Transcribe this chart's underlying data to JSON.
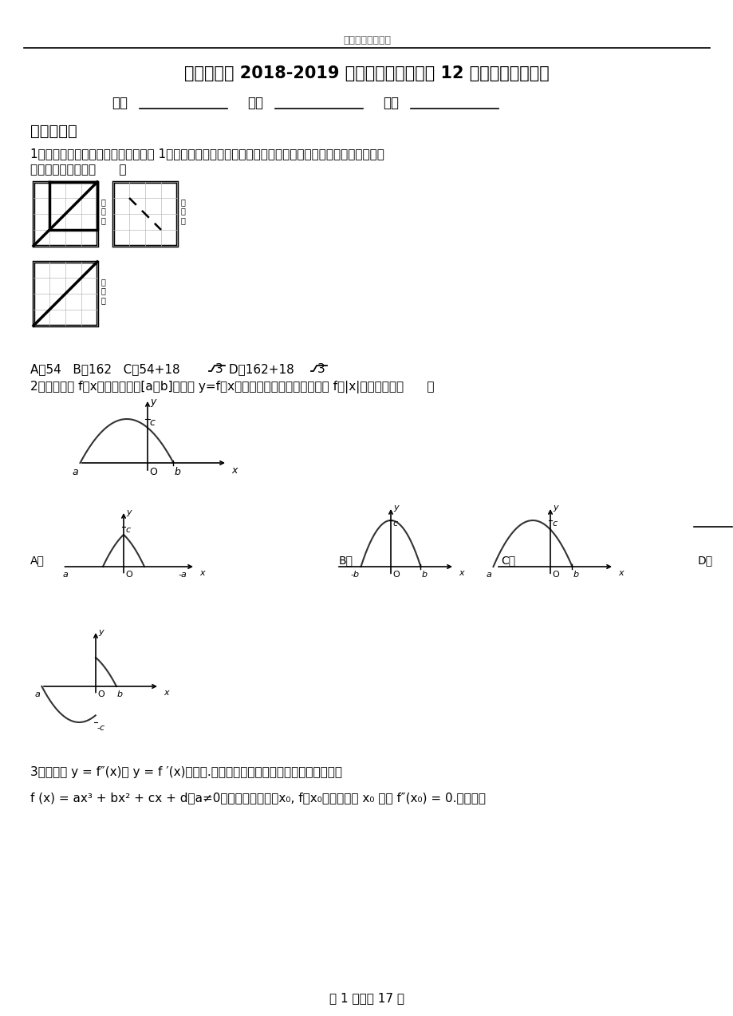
{
  "title_header": "精选高中模拟试卷",
  "title_main_part1": "灌云县二中",
  "title_main_part2": " 2018-2019 ",
  "title_main_part3": "学年上学期高二数学",
  "title_main_part4": " 12 ",
  "title_main_part5": "月月考试题含解析",
  "subtitle_1": "班级",
  "subtitle_2": "          ",
  "subtitle_3": "姓名",
  "subtitle_4": "          ",
  "subtitle_5": "分数",
  "subtitle_6": "          ",
  "section1": "一、选择题",
  "q1_line1": "1．如图，网格纸上小正方形的边长为 1，粗线画出的是一正方体被截去一部分后所得几何体的三视图，则该",
  "q1_line2": "几何体的表面积为（      ）",
  "q1_opt_prefix": "A．54   B．162   C．54+18",
  "q1_opt_mid": "3 D．162+18",
  "q1_opt_end": "3",
  "q2_line1": "2．已知函数 f（x）的定义域为[a，b]，函数 y=f（x）的图象如下图所示，则函数 f（|x|）的图象是（      ）",
  "q3_line1": "3．设函数 y = f″(x)是 y = f ′(x)的导数.某同学经过探究发现，任意一个三次函数",
  "q3_line2": "f (x) = ax³ + bx² + cx + d（a≠0）都有对称中心（x₀, f（x₀）），其中 x₀ 满足 f″(x₀) = 0.已知函数",
  "page_footer": "第 1 页，共 17 页",
  "label_zheng": "正\n视\n图",
  "label_ce": "侧\n视\n图",
  "label_fu": "俯\n视\n图",
  "bg_color": "#ffffff"
}
